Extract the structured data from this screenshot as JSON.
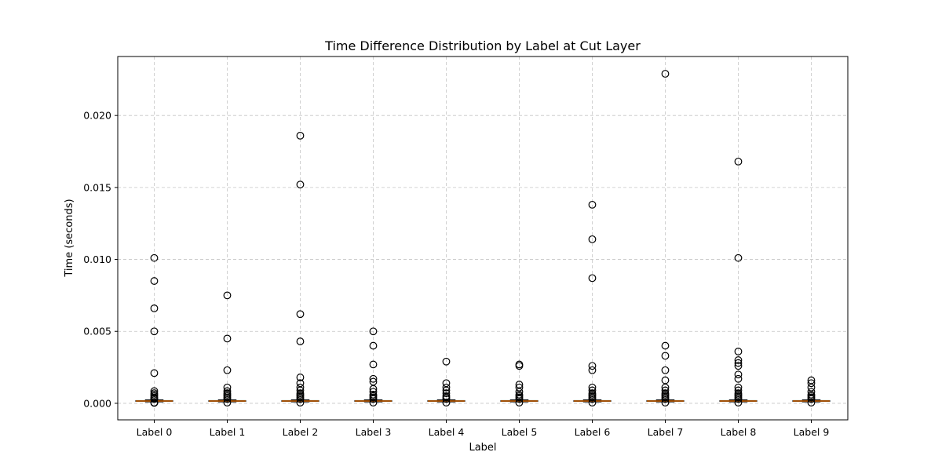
{
  "chart_data": {
    "type": "box",
    "title": "Time Difference Distribution by Label at Cut Layer",
    "xlabel": "Label",
    "ylabel": "Time (seconds)",
    "categories": [
      "Label 0",
      "Label 1",
      "Label 2",
      "Label 3",
      "Label 4",
      "Label 5",
      "Label 6",
      "Label 7",
      "Label 8",
      "Label 9"
    ],
    "ylim": [
      -0.00115,
      0.0241
    ],
    "yticks": [
      0.0,
      0.005,
      0.01,
      0.015,
      0.02
    ],
    "ytick_labels": [
      "0.000",
      "0.005",
      "0.010",
      "0.015",
      "0.020"
    ],
    "grid": true,
    "colors": {
      "box": "#000000",
      "median": "#ff7f0e",
      "flier": "#000000",
      "grid": "#b0b0b0"
    },
    "series": [
      {
        "q1": 0.00013,
        "median": 0.00016,
        "q3": 0.00019,
        "whisker_low": 0.0001,
        "whisker_high": 0.00024,
        "outliers": [
          0.0101,
          0.0085,
          0.0066,
          0.005,
          0.0021,
          0.00085,
          0.0007,
          0.0006,
          0.0005,
          0.0004,
          0.00035,
          0.0003,
          5e-05,
          3e-05
        ]
      },
      {
        "q1": 0.00013,
        "median": 0.00016,
        "q3": 0.00019,
        "whisker_low": 0.0001,
        "whisker_high": 0.00024,
        "outliers": [
          0.0075,
          0.0045,
          0.0023,
          0.0011,
          0.00085,
          0.0007,
          0.0006,
          0.0005,
          0.0004,
          0.0003,
          5e-05
        ]
      },
      {
        "q1": 0.00013,
        "median": 0.00016,
        "q3": 0.00019,
        "whisker_low": 0.0001,
        "whisker_high": 0.00024,
        "outliers": [
          0.0186,
          0.0152,
          0.0062,
          0.0043,
          0.0018,
          0.0014,
          0.0011,
          0.0009,
          0.0007,
          0.0006,
          0.0005,
          0.0004,
          0.0003,
          5e-05
        ]
      },
      {
        "q1": 0.00013,
        "median": 0.00016,
        "q3": 0.00019,
        "whisker_low": 0.0001,
        "whisker_high": 0.00024,
        "outliers": [
          0.005,
          0.004,
          0.0027,
          0.0017,
          0.0015,
          0.001,
          0.0008,
          0.0006,
          0.0005,
          0.0004,
          0.0003,
          5e-05
        ]
      },
      {
        "q1": 0.00013,
        "median": 0.00016,
        "q3": 0.00019,
        "whisker_low": 0.0001,
        "whisker_high": 0.00024,
        "outliers": [
          0.0029,
          0.0014,
          0.0011,
          0.0009,
          0.0007,
          0.0005,
          0.0004,
          0.0003,
          5e-05
        ]
      },
      {
        "q1": 0.00013,
        "median": 0.00016,
        "q3": 0.00019,
        "whisker_low": 0.0001,
        "whisker_high": 0.00024,
        "outliers": [
          0.0027,
          0.0026,
          0.0013,
          0.0011,
          0.0008,
          0.0006,
          0.0005,
          0.0004,
          0.0003,
          5e-05
        ]
      },
      {
        "q1": 0.00013,
        "median": 0.00016,
        "q3": 0.00019,
        "whisker_low": 0.0001,
        "whisker_high": 0.00024,
        "outliers": [
          0.0138,
          0.0114,
          0.0087,
          0.0026,
          0.0023,
          0.0011,
          0.0009,
          0.0007,
          0.0006,
          0.0005,
          0.0004,
          0.0003,
          5e-05
        ]
      },
      {
        "q1": 0.00013,
        "median": 0.00016,
        "q3": 0.00019,
        "whisker_low": 0.0001,
        "whisker_high": 0.00024,
        "outliers": [
          0.0229,
          0.004,
          0.0033,
          0.0023,
          0.0016,
          0.0011,
          0.0009,
          0.0007,
          0.0006,
          0.0005,
          0.0004,
          0.0003,
          5e-05
        ]
      },
      {
        "q1": 0.00013,
        "median": 0.00016,
        "q3": 0.00019,
        "whisker_low": 0.0001,
        "whisker_high": 0.00024,
        "outliers": [
          0.0168,
          0.0101,
          0.0036,
          0.003,
          0.0028,
          0.0026,
          0.002,
          0.0017,
          0.0011,
          0.0009,
          0.0007,
          0.0006,
          0.0005,
          0.0004,
          0.0003,
          5e-05
        ]
      },
      {
        "q1": 0.00013,
        "median": 0.00016,
        "q3": 0.00019,
        "whisker_low": 0.0001,
        "whisker_high": 0.00024,
        "outliers": [
          0.0016,
          0.0014,
          0.0011,
          0.0008,
          0.0006,
          0.0005,
          0.0004,
          0.0003,
          5e-05
        ]
      }
    ]
  }
}
